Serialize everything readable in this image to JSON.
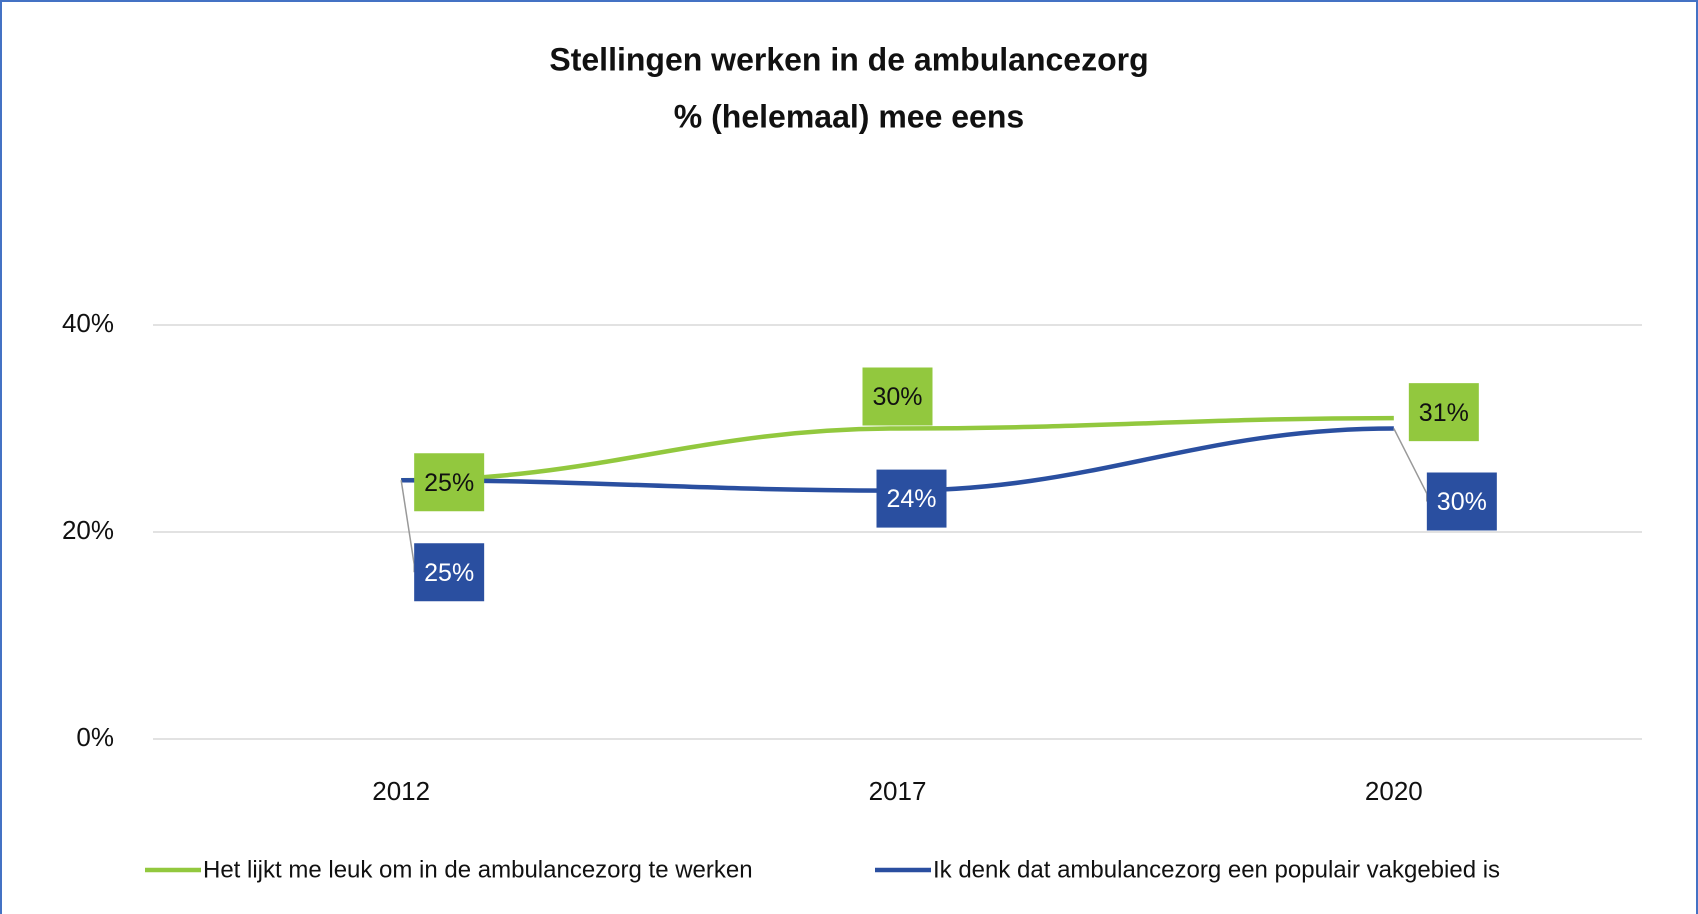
{
  "chart_data": {
    "type": "line",
    "title": [
      "Stellingen werken in de ambulancezorg",
      "% (helemaal) mee eens"
    ],
    "categories": [
      "2012",
      "2017",
      "2020"
    ],
    "series": [
      {
        "name": "Het lijkt me leuk om in de ambulancezorg te werken",
        "color": "#92c83e",
        "values": [
          25,
          30,
          31
        ],
        "value_labels": [
          "25%",
          "30%",
          "31%"
        ]
      },
      {
        "name": "Ik denk dat ambulancezorg een populair vakgebied is",
        "color": "#2a4fa0",
        "values": [
          25,
          24,
          30
        ],
        "value_labels": [
          "25%",
          "24%",
          "30%"
        ]
      }
    ],
    "ylim": [
      0,
      40
    ],
    "yticks": [
      {
        "value": 0,
        "label": "0%"
      },
      {
        "value": 20,
        "label": "20%"
      },
      {
        "value": 40,
        "label": "40%"
      }
    ],
    "grid": true,
    "legend": "bottom"
  }
}
